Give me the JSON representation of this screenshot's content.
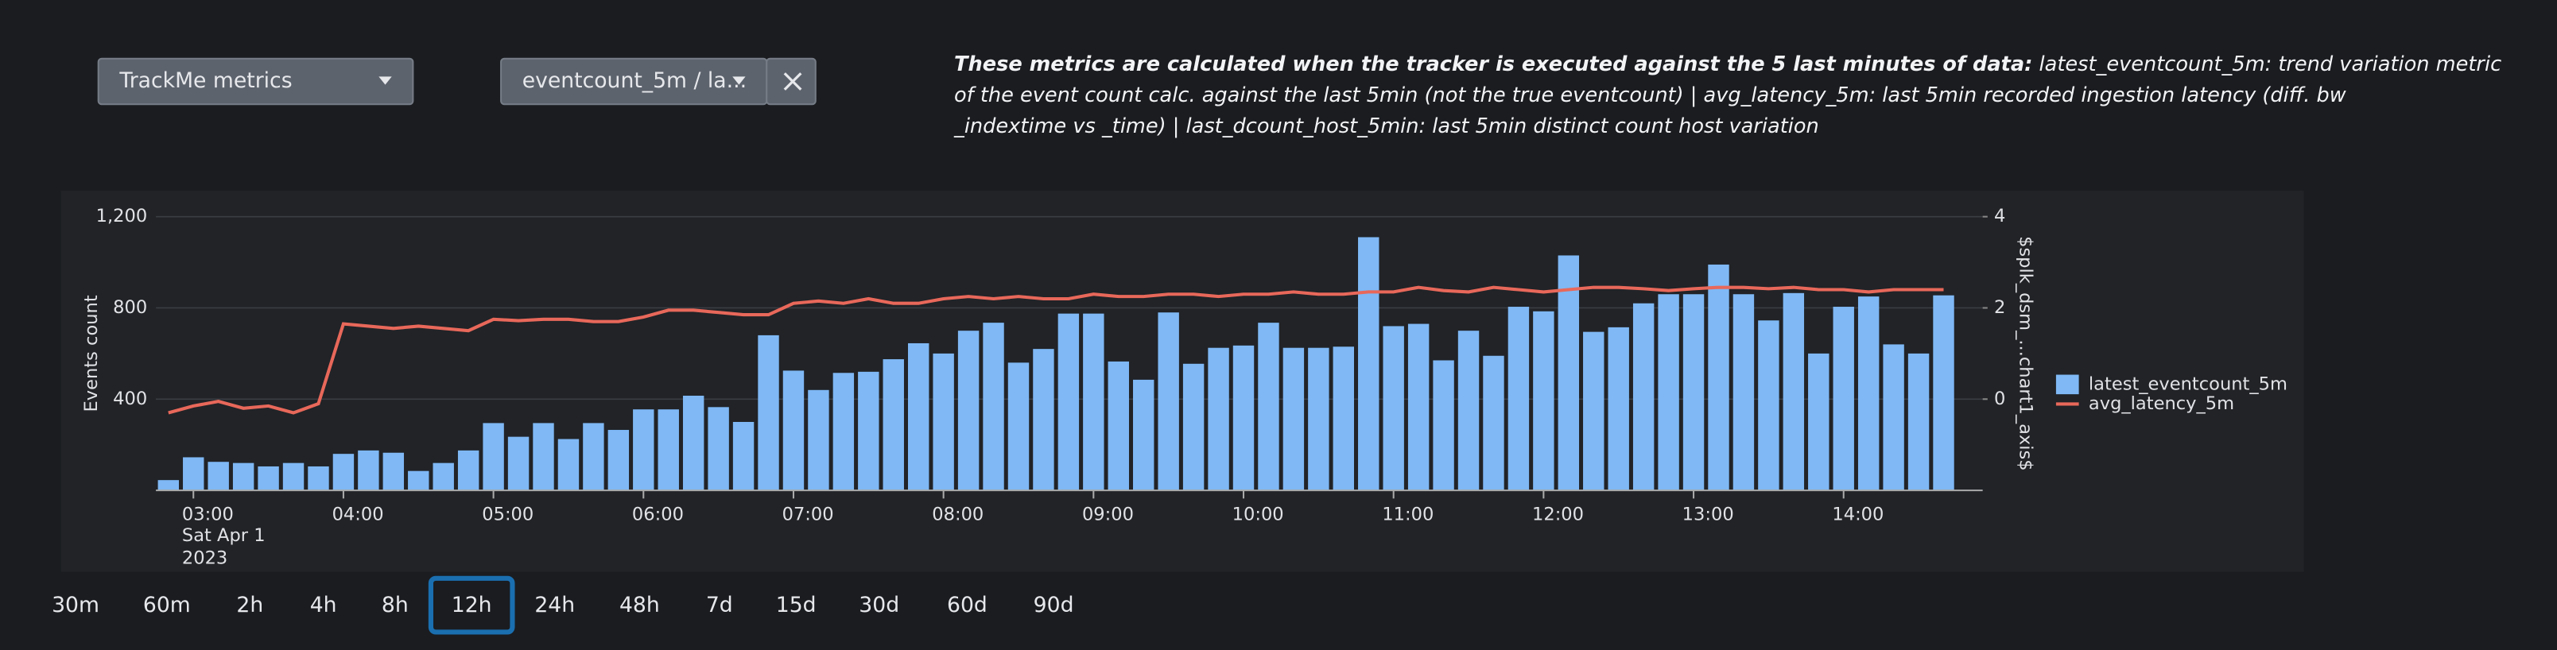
{
  "controls": {
    "dropdown1": "TrackMe metrics",
    "dropdown2": "eventcount_5m / la..."
  },
  "description": {
    "heading": "These metrics are calculated when the tracker is executed against the 5 last minutes of data:",
    "lines": [
      "latest_eventcount_5m: trend variation metric",
      "of the event count calc. against the last 5min (not the true eventcount) | avg_latency_5m: last 5min recorded ingestion latency (diff. bw",
      "_indextime vs _time) | last_dcount_host_5min: last 5min distinct count host variation"
    ]
  },
  "time_buttons": [
    "30m",
    "60m",
    "2h",
    "4h",
    "8h",
    "12h",
    "24h",
    "48h",
    "7d",
    "15d",
    "30d",
    "60d",
    "90d"
  ],
  "selected_time_button": "12h",
  "chart_data": {
    "type": "bar",
    "y_label": "Events count",
    "y2_label": "$splk_dsm_...chart1_axis$",
    "legend": "right",
    "categories": [
      null,
      null,
      null,
      null,
      null,
      null,
      null,
      null,
      null,
      null,
      null,
      null,
      null,
      null,
      null,
      null,
      null,
      null,
      null,
      null,
      null,
      null,
      null,
      null,
      null,
      null,
      null,
      null,
      null,
      null,
      null,
      null,
      null,
      null,
      null,
      null,
      null,
      null,
      null,
      null,
      null,
      null,
      null,
      null,
      null,
      null,
      null,
      null,
      null,
      null,
      null,
      null,
      null,
      null,
      null,
      null,
      null,
      null,
      null,
      null,
      null,
      null,
      null,
      null,
      null,
      null,
      null,
      null,
      null,
      null,
      null,
      null
    ],
    "series": [
      {
        "name": "latest_eventcount_5m",
        "type": "bar",
        "color": "#7fb8f5",
        "values": [
          45,
          145,
          125,
          120,
          105,
          120,
          105,
          160,
          175,
          165,
          85,
          120,
          175,
          295,
          235,
          295,
          225,
          295,
          265,
          355,
          355,
          415,
          365,
          300,
          680,
          525,
          440,
          515,
          520,
          575,
          645,
          600,
          700,
          735,
          560,
          620,
          775,
          775,
          565,
          485,
          780,
          555,
          625,
          635,
          735,
          625,
          625,
          630,
          1110,
          720,
          730,
          570,
          700,
          590,
          805,
          785,
          1030,
          695,
          715,
          820,
          860,
          860,
          990,
          860,
          745,
          865,
          600,
          805,
          850,
          640,
          600,
          855
        ]
      },
      {
        "name": "avg_latency_5m",
        "type": "line",
        "axis": "y2",
        "color": "#e8685a",
        "values": [
          -0.3,
          -0.15,
          -0.05,
          -0.2,
          -0.15,
          -0.3,
          -0.1,
          1.65,
          1.6,
          1.55,
          1.6,
          1.55,
          1.5,
          1.75,
          1.72,
          1.75,
          1.75,
          1.7,
          1.7,
          1.8,
          1.95,
          1.95,
          1.9,
          1.85,
          1.85,
          2.1,
          2.15,
          2.1,
          2.2,
          2.1,
          2.1,
          2.2,
          2.25,
          2.2,
          2.25,
          2.2,
          2.2,
          2.3,
          2.25,
          2.25,
          2.3,
          2.3,
          2.25,
          2.3,
          2.3,
          2.35,
          2.3,
          2.3,
          2.35,
          2.35,
          2.45,
          2.38,
          2.35,
          2.45,
          2.4,
          2.35,
          2.4,
          2.45,
          2.45,
          2.42,
          2.38,
          2.42,
          2.45,
          2.45,
          2.42,
          2.45,
          2.4,
          2.4,
          2.35,
          2.4,
          2.4,
          2.4
        ]
      }
    ],
    "xlim": [
      -0.5,
      71.5
    ],
    "xticks": [
      {
        "value": 1,
        "label": "03:00"
      },
      {
        "value": 7,
        "label": "04:00"
      },
      {
        "value": 13,
        "label": "05:00"
      },
      {
        "value": 19,
        "label": "06:00"
      },
      {
        "value": 25,
        "label": "07:00"
      },
      {
        "value": 31,
        "label": "08:00"
      },
      {
        "value": 37,
        "label": "09:00"
      },
      {
        "value": 43,
        "label": "10:00"
      },
      {
        "value": 49,
        "label": "11:00"
      },
      {
        "value": 55,
        "label": "12:00"
      },
      {
        "value": 61,
        "label": "13:00"
      },
      {
        "value": 67,
        "label": "14:00"
      }
    ],
    "x_tick_sublabels": [
      "Sat Apr 1",
      "2023"
    ],
    "ylim": [
      0,
      1200
    ],
    "yticks": [
      400,
      800,
      {
        "value": 1200,
        "label": "1,200"
      }
    ],
    "y2lim": [
      -2,
      4
    ],
    "y2ticks": [
      0,
      2,
      4
    ],
    "grid": true
  }
}
